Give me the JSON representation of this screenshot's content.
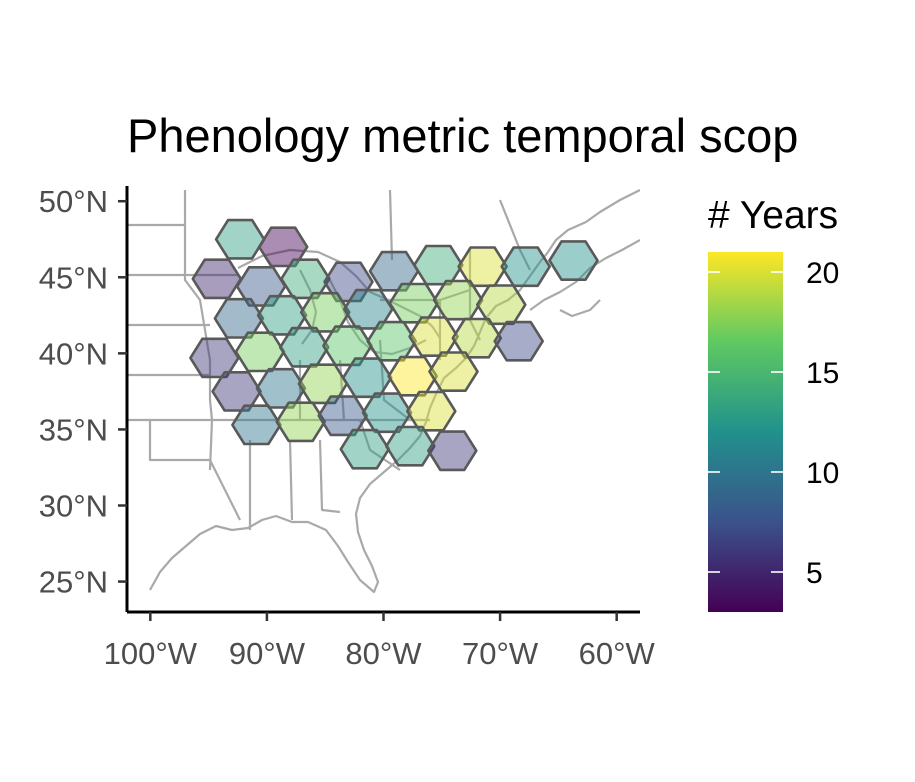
{
  "chart_data": {
    "type": "map",
    "title": "Phenology metric temporal scop",
    "xaxis": {
      "ticks": [
        "100°W",
        "90°W",
        "80°W",
        "70°W",
        "60°W"
      ],
      "tick_values": [
        -100,
        -90,
        -80,
        -70,
        -60
      ],
      "range": [
        -102,
        -58
      ]
    },
    "yaxis": {
      "ticks": [
        "25°N",
        "30°N",
        "35°N",
        "40°N",
        "45°N",
        "50°N"
      ],
      "tick_values": [
        25,
        30,
        35,
        40,
        45,
        50
      ],
      "range": [
        23,
        51
      ]
    },
    "legend": {
      "title": "# Years",
      "placement": "right",
      "labels": [
        "5",
        "10",
        "15",
        "20"
      ],
      "values": [
        5,
        10,
        15,
        20
      ],
      "range": [
        3,
        21
      ],
      "colormap": "viridis",
      "colors": [
        "#440154",
        "#3b528b",
        "#21918c",
        "#5ec962",
        "#fde725"
      ]
    },
    "hex_fill_opacity": 0.45,
    "hexbins": [
      {
        "lon": -92.3,
        "lat": 47.5,
        "years": 13
      },
      {
        "lon": -88.6,
        "lat": 47.0,
        "years": 3
      },
      {
        "lon": -94.3,
        "lat": 44.9,
        "years": 5
      },
      {
        "lon": -90.5,
        "lat": 44.4,
        "years": 8
      },
      {
        "lon": -86.7,
        "lat": 44.9,
        "years": 14
      },
      {
        "lon": -83.0,
        "lat": 44.7,
        "years": 7
      },
      {
        "lon": -79.1,
        "lat": 45.4,
        "years": 9
      },
      {
        "lon": -75.3,
        "lat": 45.8,
        "years": 14
      },
      {
        "lon": -71.5,
        "lat": 45.7,
        "years": 20
      },
      {
        "lon": -67.8,
        "lat": 45.7,
        "years": 12
      },
      {
        "lon": -63.7,
        "lat": 46.1,
        "years": 12
      },
      {
        "lon": -92.4,
        "lat": 42.3,
        "years": 9
      },
      {
        "lon": -88.7,
        "lat": 42.5,
        "years": 13
      },
      {
        "lon": -85.0,
        "lat": 42.7,
        "years": 17
      },
      {
        "lon": -81.3,
        "lat": 42.9,
        "years": 11
      },
      {
        "lon": -77.4,
        "lat": 43.3,
        "years": 17
      },
      {
        "lon": -73.6,
        "lat": 43.5,
        "years": 18
      },
      {
        "lon": -69.9,
        "lat": 43.2,
        "years": 19
      },
      {
        "lon": -94.5,
        "lat": 39.7,
        "years": 6
      },
      {
        "lon": -90.6,
        "lat": 40.1,
        "years": 17
      },
      {
        "lon": -86.8,
        "lat": 40.4,
        "years": 13
      },
      {
        "lon": -83.1,
        "lat": 40.5,
        "years": 16
      },
      {
        "lon": -79.3,
        "lat": 40.8,
        "years": 16
      },
      {
        "lon": -75.7,
        "lat": 41.1,
        "years": 20
      },
      {
        "lon": -72.0,
        "lat": 41.0,
        "years": 19
      },
      {
        "lon": -68.4,
        "lat": 40.8,
        "years": 7
      },
      {
        "lon": -92.6,
        "lat": 37.5,
        "years": 6
      },
      {
        "lon": -88.8,
        "lat": 37.7,
        "years": 10
      },
      {
        "lon": -85.2,
        "lat": 38.0,
        "years": 18
      },
      {
        "lon": -81.4,
        "lat": 38.4,
        "years": 12
      },
      {
        "lon": -77.5,
        "lat": 38.5,
        "years": 21
      },
      {
        "lon": -74.0,
        "lat": 38.8,
        "years": 20
      },
      {
        "lon": -90.9,
        "lat": 35.3,
        "years": 10
      },
      {
        "lon": -87.1,
        "lat": 35.5,
        "years": 18
      },
      {
        "lon": -83.5,
        "lat": 35.9,
        "years": 8
      },
      {
        "lon": -79.7,
        "lat": 36.1,
        "years": 12
      },
      {
        "lon": -75.9,
        "lat": 36.2,
        "years": 20
      },
      {
        "lon": -81.6,
        "lat": 33.7,
        "years": 13
      },
      {
        "lon": -77.7,
        "lat": 33.9,
        "years": 13
      },
      {
        "lon": -74.1,
        "lat": 33.6,
        "years": 6
      }
    ]
  }
}
